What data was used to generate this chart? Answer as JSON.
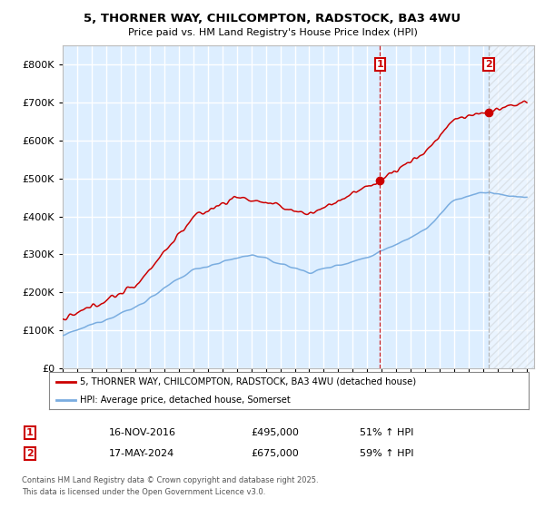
{
  "title_line1": "5, THORNER WAY, CHILCOMPTON, RADSTOCK, BA3 4WU",
  "title_line2": "Price paid vs. HM Land Registry's House Price Index (HPI)",
  "ylim": [
    0,
    850000
  ],
  "xlim_start": 1995.0,
  "xlim_end": 2027.5,
  "plot_bg_color": "#ddeeff",
  "grid_color": "#ffffff",
  "legend_label_red": "5, THORNER WAY, CHILCOMPTON, RADSTOCK, BA3 4WU (detached house)",
  "legend_label_blue": "HPI: Average price, detached house, Somerset",
  "transaction1_date": 2016.88,
  "transaction1_price": 495000,
  "transaction1_label": "1",
  "transaction2_date": 2024.38,
  "transaction2_price": 675000,
  "transaction2_label": "2",
  "annotation1_date": "16-NOV-2016",
  "annotation1_price": "£495,000",
  "annotation1_hpi": "51% ↑ HPI",
  "annotation2_date": "17-MAY-2024",
  "annotation2_price": "£675,000",
  "annotation2_hpi": "59% ↑ HPI",
  "footer_line1": "Contains HM Land Registry data © Crown copyright and database right 2025.",
  "footer_line2": "This data is licensed under the Open Government Licence v3.0.",
  "red_color": "#cc0000",
  "blue_color": "#7aade0",
  "dashed_red_color": "#cc0000",
  "dashed_grey_color": "#aaaaaa"
}
